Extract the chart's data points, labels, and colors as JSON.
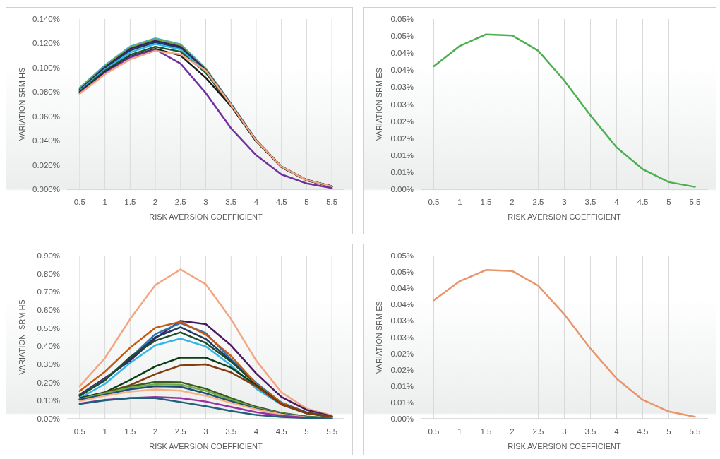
{
  "chart_data": [
    {
      "type": "line",
      "xlabel": "RISK AVERSION COEFFICIENT",
      "ylabel": "VARIATION SRM HS",
      "categories": [
        "0.5",
        "1",
        "1.5",
        "2",
        "2.5",
        "3",
        "3.5",
        "4",
        "4.5",
        "5",
        "5.5"
      ],
      "ylim": [
        0,
        0.14
      ],
      "yticks": [
        {
          "value": 0,
          "label": "0.000%"
        },
        {
          "value": 0.02,
          "label": "0.020%"
        },
        {
          "value": 0.04,
          "label": "0.040%"
        },
        {
          "value": 0.06,
          "label": "0.060%"
        },
        {
          "value": 0.08,
          "label": "0.080%"
        },
        {
          "value": 0.1,
          "label": "0.100%"
        },
        {
          "value": 0.12,
          "label": "0.120%"
        },
        {
          "value": 0.14,
          "label": "0.140%"
        }
      ],
      "grid": "x",
      "marker": "none",
      "line_style": "solid",
      "series": [
        {
          "color": "#4bacc6",
          "values": [
            0.0834,
            0.102,
            0.1174,
            0.1242,
            0.1193,
            0.0994,
            0.0705,
            0.0405,
            0.0188,
            0.0077,
            0.0025
          ]
        },
        {
          "color": "#70ad47",
          "values": [
            0.0828,
            0.1012,
            0.1165,
            0.1235,
            0.1185,
            0.0988,
            0.0702,
            0.0403,
            0.0187,
            0.0076,
            0.0025
          ]
        },
        {
          "color": "#3b1f5a",
          "values": [
            0.082,
            0.1002,
            0.1155,
            0.1222,
            0.1172,
            0.0982,
            0.07,
            0.0402,
            0.0186,
            0.0076,
            0.0024
          ]
        },
        {
          "color": "#1f3864",
          "values": [
            0.0815,
            0.0995,
            0.1142,
            0.121,
            0.116,
            0.0975,
            0.0697,
            0.04,
            0.0185,
            0.0075,
            0.0024
          ]
        },
        {
          "color": "#33b5e5",
          "values": [
            0.081,
            0.0985,
            0.1125,
            0.1195,
            0.115,
            0.0965,
            0.0693,
            null,
            null,
            null,
            null
          ]
        },
        {
          "color": "#1e5631",
          "values": [
            0.0803,
            0.0975,
            0.1105,
            0.1172,
            0.1132,
            0.0958,
            0.069,
            0.0396,
            0.0183,
            0.0074,
            0.0023
          ]
        },
        {
          "color": "#1a1a1a",
          "values": [
            0.0795,
            0.0962,
            0.109,
            0.1155,
            0.11,
            0.0917,
            0.0685,
            0.0394,
            0.0182,
            0.0074,
            0.0023
          ]
        },
        {
          "color": "#7030a0",
          "values": [
            0.079,
            0.0955,
            0.1085,
            0.115,
            0.1033,
            0.0792,
            0.0502,
            0.028,
            0.0122,
            0.0048,
            0.001
          ]
        },
        {
          "color": "#f4a582",
          "values": [
            0.0786,
            0.0946,
            0.1068,
            0.1139,
            0.111,
            0.0975,
            0.0695,
            0.04,
            0.0185,
            0.0075,
            0.0024
          ]
        }
      ]
    },
    {
      "type": "line",
      "xlabel": "RISK AVERSION COEFFICIENT",
      "ylabel": "VARIATION SRM ES",
      "categories": [
        "0.5",
        "1",
        "1.5",
        "2",
        "2.5",
        "3",
        "3.5",
        "4",
        "4.5",
        "5",
        "5.5"
      ],
      "ylim": [
        0,
        0.05
      ],
      "yticks": [
        {
          "value": 0,
          "label": "0.00%"
        },
        {
          "value": 0.005,
          "label": "0.01%"
        },
        {
          "value": 0.01,
          "label": "0.01%"
        },
        {
          "value": 0.015,
          "label": "0.02%"
        },
        {
          "value": 0.02,
          "label": "0.02%"
        },
        {
          "value": 0.025,
          "label": "0.03%"
        },
        {
          "value": 0.03,
          "label": "0.03%"
        },
        {
          "value": 0.035,
          "label": "0.04%"
        },
        {
          "value": 0.04,
          "label": "0.04%"
        },
        {
          "value": 0.045,
          "label": "0.05%"
        },
        {
          "value": 0.05,
          "label": "0.05%"
        }
      ],
      "grid": "x",
      "marker": "none",
      "line_style": "solid",
      "series": [
        {
          "color": "#4caf50",
          "values": [
            0.0361,
            0.0421,
            0.0455,
            0.0452,
            0.0407,
            0.0319,
            0.0217,
            0.0123,
            0.0059,
            0.0021,
            0.0007
          ]
        }
      ]
    },
    {
      "type": "line",
      "xlabel": "RISK AVERSION COEFFICIENT",
      "ylabel": "VARIATION  SRM HS",
      "categories": [
        "0.5",
        "1",
        "1.5",
        "2",
        "2.5",
        "3",
        "3.5",
        "4",
        "4.5",
        "5",
        "5.5"
      ],
      "ylim": [
        0,
        0.9
      ],
      "yticks": [
        {
          "value": 0,
          "label": "0.00%"
        },
        {
          "value": 0.1,
          "label": "0.10%"
        },
        {
          "value": 0.2,
          "label": "0.20%"
        },
        {
          "value": 0.3,
          "label": "0.30%"
        },
        {
          "value": 0.4,
          "label": "0.40%"
        },
        {
          "value": 0.5,
          "label": "0.50%"
        },
        {
          "value": 0.6,
          "label": "0.60%"
        },
        {
          "value": 0.7,
          "label": "0.70%"
        },
        {
          "value": 0.8,
          "label": "0.80%"
        },
        {
          "value": 0.9,
          "label": "0.90%"
        }
      ],
      "grid": "x",
      "marker": "none",
      "line_style": "solid",
      "series": [
        {
          "color": "#f4a582",
          "values": [
            0.179,
            0.334,
            0.55,
            0.738,
            0.824,
            0.742,
            0.55,
            0.321,
            0.146,
            0.056,
            0.019
          ]
        },
        {
          "color": "#4b1a5e",
          "values": [
            0.133,
            0.224,
            0.321,
            0.444,
            0.54,
            0.522,
            0.405,
            0.25,
            0.12,
            0.049,
            0.014
          ]
        },
        {
          "color": "#2e75b6",
          "values": [
            0.128,
            0.218,
            0.335,
            0.467,
            0.528,
            0.473,
            0.328,
            0.198,
            0.09,
            0.035,
            0.013
          ]
        },
        {
          "color": "#1f3864",
          "values": [
            0.125,
            0.215,
            0.33,
            0.45,
            0.505,
            0.44,
            0.32,
            0.19,
            0.085,
            0.033,
            0.012
          ]
        },
        {
          "color": "#1e4d2b",
          "values": [
            0.129,
            0.211,
            0.341,
            0.431,
            0.477,
            0.418,
            0.315,
            0.192,
            0.082,
            0.032,
            0.013
          ]
        },
        {
          "color": "#c55a11",
          "values": [
            0.153,
            0.259,
            0.392,
            0.502,
            0.535,
            0.464,
            0.347,
            0.192,
            0.088,
            0.032,
            0.013
          ]
        },
        {
          "color": "#33b5e5",
          "values": [
            0.114,
            0.192,
            0.308,
            0.405,
            0.442,
            0.399,
            0.295,
            0.166,
            0.078,
            0.03,
            0.01
          ]
        },
        {
          "color": "#0b3d17",
          "values": [
            0.114,
            0.146,
            0.214,
            0.289,
            0.338,
            0.337,
            0.282,
            0.185,
            0.08,
            0.031,
            0.011
          ]
        },
        {
          "color": "#843c0c",
          "values": [
            0.107,
            0.144,
            0.185,
            0.246,
            0.294,
            0.3,
            0.256,
            0.179,
            0.079,
            0.03,
            0.01
          ]
        },
        {
          "color": "#3a5a1e",
          "values": [
            0.107,
            0.142,
            0.179,
            0.203,
            0.201,
            0.166,
            0.114,
            0.066,
            0.032,
            0.013,
            0.004
          ]
        },
        {
          "color": "#70ad47",
          "values": [
            0.107,
            0.14,
            0.172,
            0.19,
            0.188,
            0.155,
            0.105,
            0.06,
            0.029,
            0.011,
            0.004
          ]
        },
        {
          "color": "#1f4e79",
          "values": [
            0.105,
            0.133,
            0.163,
            0.179,
            0.176,
            0.14,
            0.097,
            0.056,
            0.027,
            0.01,
            0.003
          ]
        },
        {
          "color": "#f4b183",
          "values": [
            0.097,
            0.127,
            0.15,
            0.162,
            0.155,
            0.127,
            0.088,
            0.052,
            0.023,
            0.008,
            0.003
          ]
        },
        {
          "color": "#9b30a0",
          "values": [
            0.084,
            0.104,
            0.114,
            0.12,
            0.114,
            0.095,
            0.065,
            0.036,
            0.017,
            0.006,
            0.001
          ]
        },
        {
          "color": "#1f5f7a",
          "values": [
            0.082,
            0.101,
            0.114,
            0.114,
            0.092,
            0.069,
            0.043,
            0.021,
            0.01,
            0.004,
            0.001
          ]
        }
      ]
    },
    {
      "type": "line",
      "xlabel": "RISK AVERSION COEFFICIENT",
      "ylabel": "VARIATION SRM ES",
      "categories": [
        "0.5",
        "1",
        "1.5",
        "2",
        "2.5",
        "3",
        "3.5",
        "4",
        "4.5",
        "5",
        "5.5"
      ],
      "ylim": [
        0,
        0.05
      ],
      "yticks": [
        {
          "value": 0,
          "label": "0.00%"
        },
        {
          "value": 0.005,
          "label": "0.01%"
        },
        {
          "value": 0.01,
          "label": "0.01%"
        },
        {
          "value": 0.015,
          "label": "0.02%"
        },
        {
          "value": 0.02,
          "label": "0.02%"
        },
        {
          "value": 0.025,
          "label": "0.03%"
        },
        {
          "value": 0.03,
          "label": "0.03%"
        },
        {
          "value": 0.035,
          "label": "0.04%"
        },
        {
          "value": 0.04,
          "label": "0.04%"
        },
        {
          "value": 0.045,
          "label": "0.05%"
        },
        {
          "value": 0.05,
          "label": "0.05%"
        }
      ],
      "grid": "x",
      "marker": "none",
      "line_style": "solid",
      "series": [
        {
          "color": "#e8956b",
          "values": [
            0.0363,
            0.0422,
            0.0456,
            0.0453,
            0.0408,
            0.032,
            0.0215,
            0.0123,
            0.0058,
            0.0022,
            0.0006
          ]
        }
      ]
    }
  ]
}
